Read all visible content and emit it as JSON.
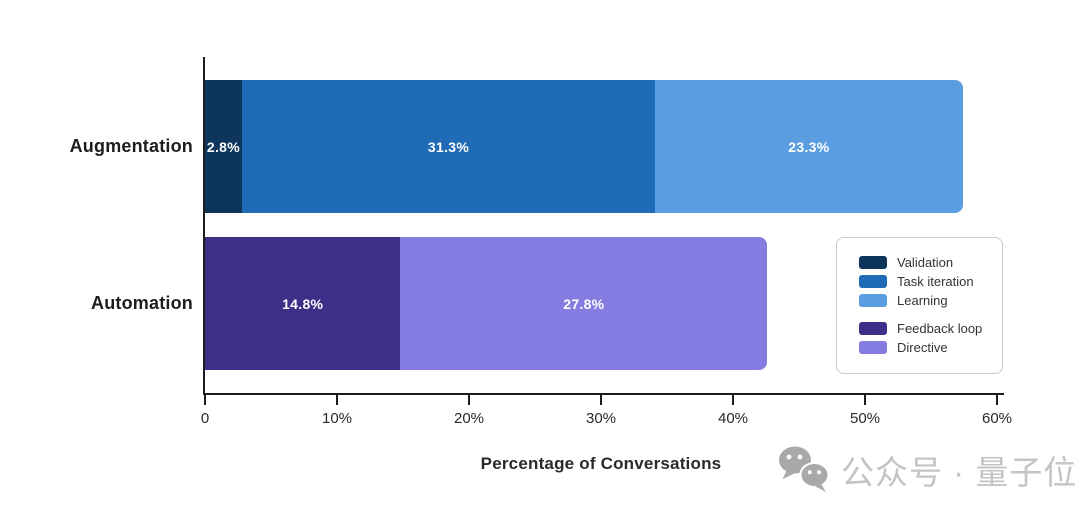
{
  "watermark": {
    "icon": "wechat-icon",
    "text": "公众号 · 量子位",
    "icon_color": "#a9a9a9",
    "text_color": "#c4c4c4"
  },
  "chart_data": {
    "type": "bar",
    "orientation": "horizontal",
    "stacked": true,
    "title": "",
    "xlabel": "Percentage of Conversations",
    "ylabel": "",
    "xlim": [
      0,
      60
    ],
    "grid": false,
    "legend_position": "right-center",
    "axis_color": "#1c1c1c",
    "categories": [
      "Augmentation",
      "Automation"
    ],
    "rows": [
      {
        "label": "Augmentation",
        "total": 57.4,
        "segments": [
          {
            "name": "Validation",
            "value": 2.8,
            "label": "2.8%",
            "color": "#0E355C"
          },
          {
            "name": "Task iteration",
            "value": 31.3,
            "label": "31.3%",
            "color": "#1F6BB5"
          },
          {
            "name": "Learning",
            "value": 23.3,
            "label": "23.3%",
            "color": "#5A9DE0"
          }
        ]
      },
      {
        "label": "Automation",
        "total": 42.6,
        "segments": [
          {
            "name": "Feedback loop",
            "value": 14.8,
            "label": "14.8%",
            "color": "#3B2F87"
          },
          {
            "name": "Directive",
            "value": 27.8,
            "label": "27.8%",
            "color": "#847CE0"
          }
        ]
      }
    ],
    "xticks": [
      {
        "value": 0,
        "label": "0"
      },
      {
        "value": 10,
        "label": "10%"
      },
      {
        "value": 20,
        "label": "20%"
      },
      {
        "value": 30,
        "label": "30%"
      },
      {
        "value": 40,
        "label": "40%"
      },
      {
        "value": 50,
        "label": "50%"
      },
      {
        "value": 60,
        "label": "60%"
      }
    ],
    "legend": {
      "groups": [
        [
          {
            "name": "Validation",
            "color": "#0E355C"
          },
          {
            "name": "Task iteration",
            "color": "#1F6BB5"
          },
          {
            "name": "Learning",
            "color": "#5A9DE0"
          }
        ],
        [
          {
            "name": "Feedback loop",
            "color": "#3B2F87"
          },
          {
            "name": "Directive",
            "color": "#847CE0"
          }
        ]
      ]
    }
  }
}
